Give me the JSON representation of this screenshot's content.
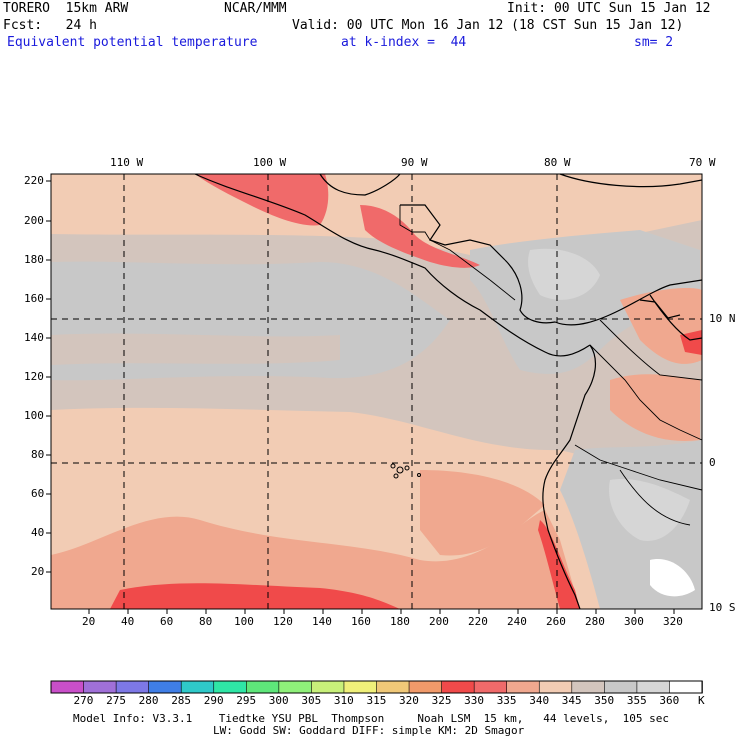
{
  "header": {
    "line1_left": "TORERO  15km ARW",
    "line1_center": "NCAR/MMM",
    "line1_right": "Init: 00 UTC Sun 15 Jan 12",
    "line2_left": "Fcst:   24 h",
    "line2_right": "Valid: 00 UTC Mon 16 Jan 12 (18 CST Sun 15 Jan 12)",
    "line3_left": "Equivalent potential temperature",
    "line3_center": "at k-index =  44",
    "line3_right": "sm= 2"
  },
  "map": {
    "top_lon_labels": [
      "110 W",
      "100 W",
      "90 W",
      "80 W",
      "70 W"
    ],
    "right_lat_labels": [
      "10 N",
      "0",
      "10 S"
    ],
    "y_ticks": [
      "220",
      "200",
      "180",
      "160",
      "140",
      "120",
      "100",
      "80",
      "60",
      "40",
      "20"
    ],
    "x_ticks": [
      "20",
      "40",
      "60",
      "80",
      "100",
      "120",
      "140",
      "160",
      "180",
      "200",
      "220",
      "240",
      "260",
      "280",
      "300",
      "320"
    ]
  },
  "colorbar": {
    "unit": "K",
    "labels": [
      "270",
      "275",
      "280",
      "285",
      "290",
      "295",
      "300",
      "305",
      "310",
      "315",
      "320",
      "325",
      "330",
      "335",
      "340",
      "345",
      "350",
      "355",
      "360"
    ],
    "colors": [
      "#c94fc9",
      "#a070d8",
      "#7d78e6",
      "#3f7ee6",
      "#2fc9c9",
      "#2fe6a6",
      "#5ee67a",
      "#8ff07a",
      "#c8f07a",
      "#f0f07a",
      "#f0c878",
      "#f09a6a",
      "#f04a4a",
      "#f06a6a",
      "#f0a88f",
      "#f2ccb4",
      "#d3c5bd",
      "#c8c8c8",
      "#d6d6d6",
      "#ffffff"
    ]
  },
  "footer": {
    "line1": "Model Info: V3.3.1    Tiedtke YSU PBL  Thompson     Noah LSM  15 km,   44 levels,  105 sec",
    "line2": "LW: Godd SW: Goddard DIFF: simple KM: 2D Smagor"
  }
}
